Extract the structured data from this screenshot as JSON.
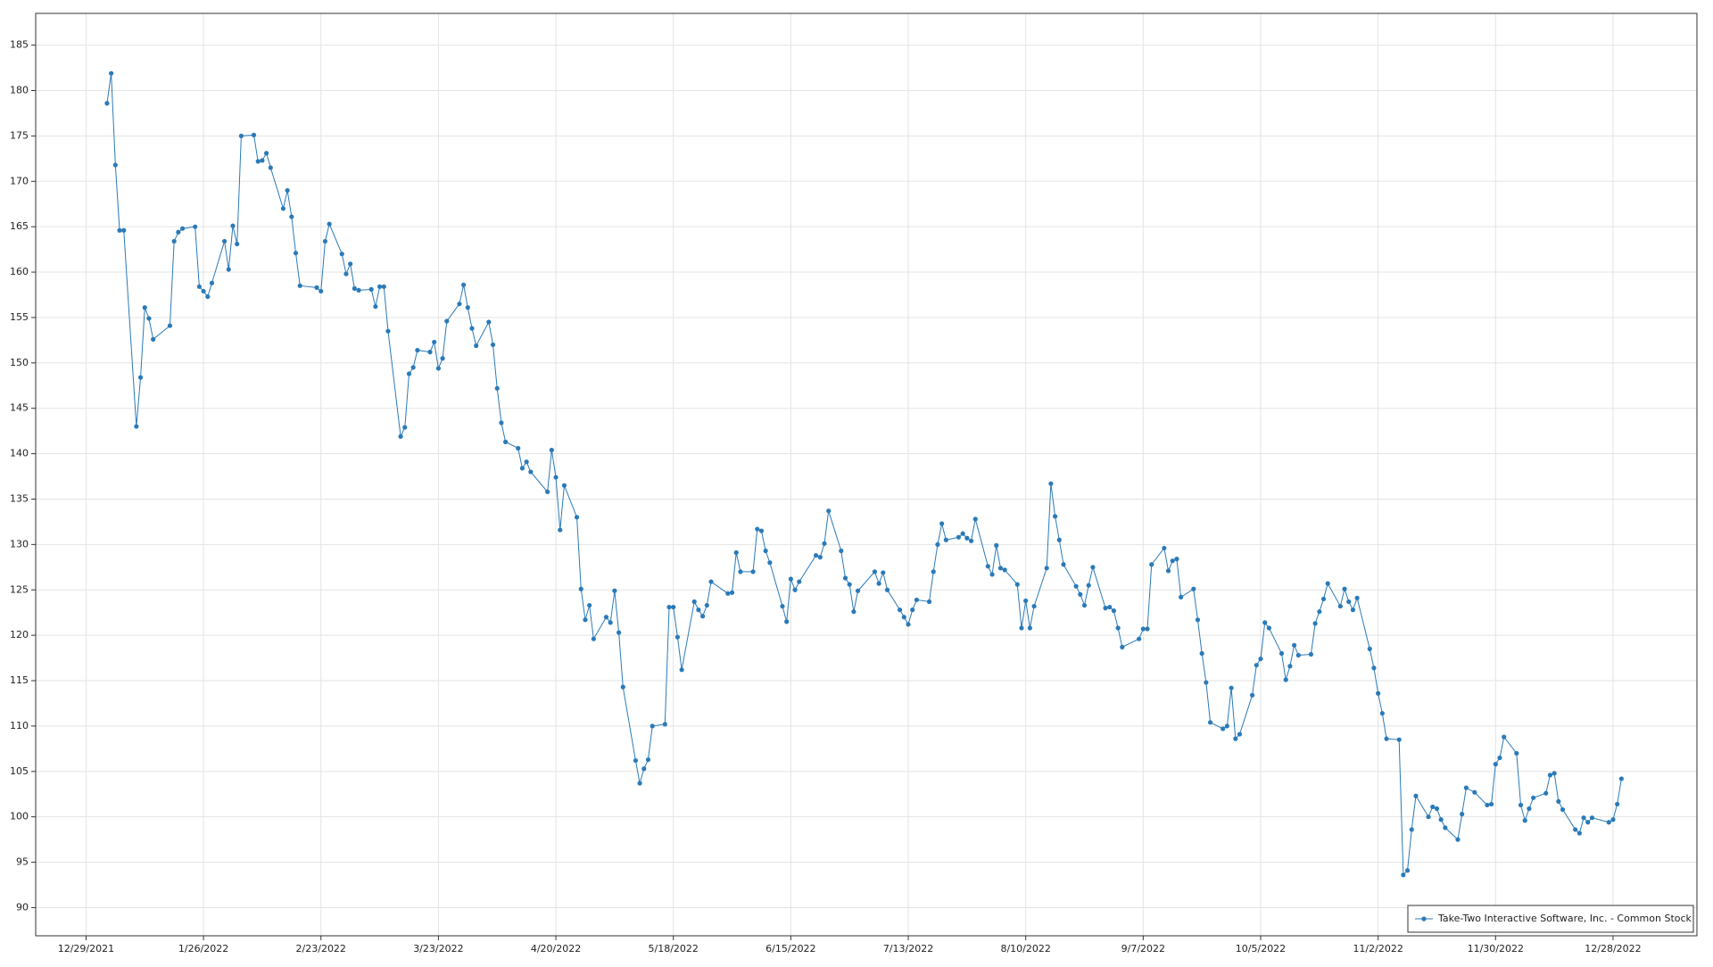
{
  "chart_data": {
    "type": "line",
    "x": [
      "2022-01-03",
      "2022-01-04",
      "2022-01-05",
      "2022-01-06",
      "2022-01-07",
      "2022-01-10",
      "2022-01-11",
      "2022-01-12",
      "2022-01-13",
      "2022-01-14",
      "2022-01-18",
      "2022-01-19",
      "2022-01-20",
      "2022-01-21",
      "2022-01-24",
      "2022-01-25",
      "2022-01-26",
      "2022-01-27",
      "2022-01-28",
      "2022-01-31",
      "2022-02-01",
      "2022-02-02",
      "2022-02-03",
      "2022-02-04",
      "2022-02-07",
      "2022-02-08",
      "2022-02-09",
      "2022-02-10",
      "2022-02-11",
      "2022-02-14",
      "2022-02-15",
      "2022-02-16",
      "2022-02-17",
      "2022-02-18",
      "2022-02-22",
      "2022-02-23",
      "2022-02-24",
      "2022-02-25",
      "2022-02-28",
      "2022-03-01",
      "2022-03-02",
      "2022-03-03",
      "2022-03-04",
      "2022-03-07",
      "2022-03-08",
      "2022-03-09",
      "2022-03-10",
      "2022-03-11",
      "2022-03-14",
      "2022-03-15",
      "2022-03-16",
      "2022-03-17",
      "2022-03-18",
      "2022-03-21",
      "2022-03-22",
      "2022-03-23",
      "2022-03-24",
      "2022-03-25",
      "2022-03-28",
      "2022-03-29",
      "2022-03-30",
      "2022-03-31",
      "2022-04-01",
      "2022-04-04",
      "2022-04-05",
      "2022-04-06",
      "2022-04-07",
      "2022-04-08",
      "2022-04-11",
      "2022-04-12",
      "2022-04-13",
      "2022-04-14",
      "2022-04-18",
      "2022-04-19",
      "2022-04-20",
      "2022-04-21",
      "2022-04-22",
      "2022-04-25",
      "2022-04-26",
      "2022-04-27",
      "2022-04-28",
      "2022-04-29",
      "2022-05-02",
      "2022-05-03",
      "2022-05-04",
      "2022-05-05",
      "2022-05-06",
      "2022-05-09",
      "2022-05-10",
      "2022-05-11",
      "2022-05-12",
      "2022-05-13",
      "2022-05-16",
      "2022-05-17",
      "2022-05-18",
      "2022-05-19",
      "2022-05-20",
      "2022-05-23",
      "2022-05-24",
      "2022-05-25",
      "2022-05-26",
      "2022-05-27",
      "2022-05-31",
      "2022-06-01",
      "2022-06-02",
      "2022-06-03",
      "2022-06-06",
      "2022-06-07",
      "2022-06-08",
      "2022-06-09",
      "2022-06-10",
      "2022-06-13",
      "2022-06-14",
      "2022-06-15",
      "2022-06-16",
      "2022-06-17",
      "2022-06-21",
      "2022-06-22",
      "2022-06-23",
      "2022-06-24",
      "2022-06-27",
      "2022-06-28",
      "2022-06-29",
      "2022-06-30",
      "2022-07-01",
      "2022-07-05",
      "2022-07-06",
      "2022-07-07",
      "2022-07-08",
      "2022-07-11",
      "2022-07-12",
      "2022-07-13",
      "2022-07-14",
      "2022-07-15",
      "2022-07-18",
      "2022-07-19",
      "2022-07-20",
      "2022-07-21",
      "2022-07-22",
      "2022-07-25",
      "2022-07-26",
      "2022-07-27",
      "2022-07-28",
      "2022-07-29",
      "2022-08-01",
      "2022-08-02",
      "2022-08-03",
      "2022-08-04",
      "2022-08-05",
      "2022-08-08",
      "2022-08-09",
      "2022-08-10",
      "2022-08-11",
      "2022-08-12",
      "2022-08-15",
      "2022-08-16",
      "2022-08-17",
      "2022-08-18",
      "2022-08-19",
      "2022-08-22",
      "2022-08-23",
      "2022-08-24",
      "2022-08-25",
      "2022-08-26",
      "2022-08-29",
      "2022-08-30",
      "2022-08-31",
      "2022-09-01",
      "2022-09-02",
      "2022-09-06",
      "2022-09-07",
      "2022-09-08",
      "2022-09-09",
      "2022-09-12",
      "2022-09-13",
      "2022-09-14",
      "2022-09-15",
      "2022-09-16",
      "2022-09-19",
      "2022-09-20",
      "2022-09-21",
      "2022-09-22",
      "2022-09-23",
      "2022-09-26",
      "2022-09-27",
      "2022-09-28",
      "2022-09-29",
      "2022-09-30",
      "2022-10-03",
      "2022-10-04",
      "2022-10-05",
      "2022-10-06",
      "2022-10-07",
      "2022-10-10",
      "2022-10-11",
      "2022-10-12",
      "2022-10-13",
      "2022-10-14",
      "2022-10-17",
      "2022-10-18",
      "2022-10-19",
      "2022-10-20",
      "2022-10-21",
      "2022-10-24",
      "2022-10-25",
      "2022-10-26",
      "2022-10-27",
      "2022-10-28",
      "2022-10-31",
      "2022-11-01",
      "2022-11-02",
      "2022-11-03",
      "2022-11-04",
      "2022-11-07",
      "2022-11-08",
      "2022-11-09",
      "2022-11-10",
      "2022-11-11",
      "2022-11-14",
      "2022-11-15",
      "2022-11-16",
      "2022-11-17",
      "2022-11-18",
      "2022-11-21",
      "2022-11-22",
      "2022-11-23",
      "2022-11-25",
      "2022-11-28",
      "2022-11-29",
      "2022-11-30",
      "2022-12-01",
      "2022-12-02",
      "2022-12-05",
      "2022-12-06",
      "2022-12-07",
      "2022-12-08",
      "2022-12-09",
      "2022-12-12",
      "2022-12-13",
      "2022-12-14",
      "2022-12-15",
      "2022-12-16",
      "2022-12-19",
      "2022-12-20",
      "2022-12-21",
      "2022-12-22",
      "2022-12-23",
      "2022-12-27",
      "2022-12-28",
      "2022-12-29",
      "2022-12-30"
    ],
    "series": [
      {
        "name": "Take-Two Interactive Software, Inc. - Common Stock",
        "color": "#2a7ab8",
        "values": [
          178.6,
          181.9,
          171.8,
          164.6,
          164.6,
          143.0,
          148.4,
          156.1,
          154.9,
          152.6,
          154.1,
          163.4,
          164.4,
          164.8,
          165.0,
          158.4,
          157.9,
          157.3,
          158.8,
          163.4,
          160.3,
          165.1,
          163.1,
          175.0,
          175.1,
          172.2,
          172.3,
          173.1,
          171.5,
          167.0,
          169.0,
          166.1,
          162.1,
          158.5,
          158.3,
          157.9,
          163.4,
          165.3,
          162.0,
          159.8,
          160.9,
          158.2,
          158.0,
          158.1,
          156.2,
          158.4,
          158.4,
          153.5,
          141.9,
          142.9,
          148.8,
          149.5,
          151.4,
          151.2,
          152.3,
          149.4,
          150.5,
          154.6,
          156.5,
          158.6,
          156.1,
          153.8,
          151.9,
          154.5,
          152.0,
          147.2,
          143.4,
          141.3,
          140.6,
          138.4,
          139.1,
          138.0,
          135.8,
          140.4,
          137.4,
          131.6,
          136.5,
          133.0,
          125.1,
          121.7,
          123.3,
          119.6,
          122.0,
          121.4,
          124.9,
          120.3,
          114.3,
          106.2,
          103.7,
          105.3,
          106.3,
          110.0,
          110.2,
          123.1,
          123.1,
          119.8,
          116.2,
          123.7,
          122.8,
          122.1,
          123.3,
          125.9,
          124.6,
          124.7,
          129.1,
          127.0,
          127.0,
          131.7,
          131.5,
          129.3,
          128.0,
          123.2,
          121.5,
          126.2,
          125.0,
          125.9,
          128.8,
          128.6,
          130.1,
          133.7,
          129.3,
          126.3,
          125.6,
          122.6,
          124.9,
          127.0,
          125.7,
          126.9,
          125.0,
          122.8,
          122.0,
          121.2,
          122.8,
          123.9,
          123.7,
          127.0,
          130.0,
          132.3,
          130.5,
          130.8,
          131.2,
          130.7,
          130.4,
          132.8,
          127.6,
          126.7,
          129.9,
          127.4,
          127.2,
          125.6,
          120.8,
          123.8,
          120.8,
          123.2,
          127.4,
          136.7,
          133.1,
          130.5,
          127.8,
          125.4,
          124.5,
          123.3,
          125.5,
          127.5,
          123.0,
          123.1,
          122.7,
          120.8,
          118.7,
          119.6,
          120.7,
          120.7,
          127.8,
          129.6,
          127.1,
          128.2,
          128.4,
          124.2,
          125.1,
          121.7,
          118.0,
          114.8,
          110.4,
          109.7,
          110.0,
          114.2,
          108.6,
          109.1,
          113.4,
          116.7,
          117.4,
          121.4,
          120.8,
          118.0,
          115.1,
          116.6,
          118.9,
          117.8,
          117.9,
          121.3,
          122.6,
          124.0,
          125.7,
          123.2,
          125.1,
          123.7,
          122.8,
          124.1,
          118.5,
          116.4,
          113.6,
          111.4,
          108.6,
          108.5,
          93.6,
          94.1,
          98.6,
          102.3,
          100.0,
          101.1,
          100.9,
          99.7,
          98.8,
          97.5,
          100.3,
          103.2,
          102.7,
          101.3,
          101.4,
          105.8,
          106.5,
          108.8,
          107.0,
          101.3,
          99.6,
          100.9,
          102.1,
          102.6,
          104.6,
          104.8,
          101.7,
          100.8,
          98.6,
          98.2,
          99.9,
          99.4,
          99.9,
          99.4,
          99.7,
          101.4,
          104.2
        ]
      }
    ],
    "xlim": [
      "2021-12-17",
      "2023-01-17"
    ],
    "xticks": [
      {
        "value": "2021-12-29",
        "label": "12/29/2021"
      },
      {
        "value": "2022-01-26",
        "label": "1/26/2022"
      },
      {
        "value": "2022-02-23",
        "label": "2/23/2022"
      },
      {
        "value": "2022-03-23",
        "label": "3/23/2022"
      },
      {
        "value": "2022-04-20",
        "label": "4/20/2022"
      },
      {
        "value": "2022-05-18",
        "label": "5/18/2022"
      },
      {
        "value": "2022-06-15",
        "label": "6/15/2022"
      },
      {
        "value": "2022-07-13",
        "label": "7/13/2022"
      },
      {
        "value": "2022-08-10",
        "label": "8/10/2022"
      },
      {
        "value": "2022-09-07",
        "label": "9/7/2022"
      },
      {
        "value": "2022-10-05",
        "label": "10/5/2022"
      },
      {
        "value": "2022-11-02",
        "label": "11/2/2022"
      },
      {
        "value": "2022-11-30",
        "label": "11/30/2022"
      },
      {
        "value": "2022-12-28",
        "label": "12/28/2022"
      }
    ],
    "ylim": [
      86.9,
      188.5
    ],
    "yticks": [
      90,
      95,
      100,
      105,
      110,
      115,
      120,
      125,
      130,
      135,
      140,
      145,
      150,
      155,
      160,
      165,
      170,
      175,
      180,
      185
    ],
    "grid": true,
    "legend": "lower right"
  }
}
